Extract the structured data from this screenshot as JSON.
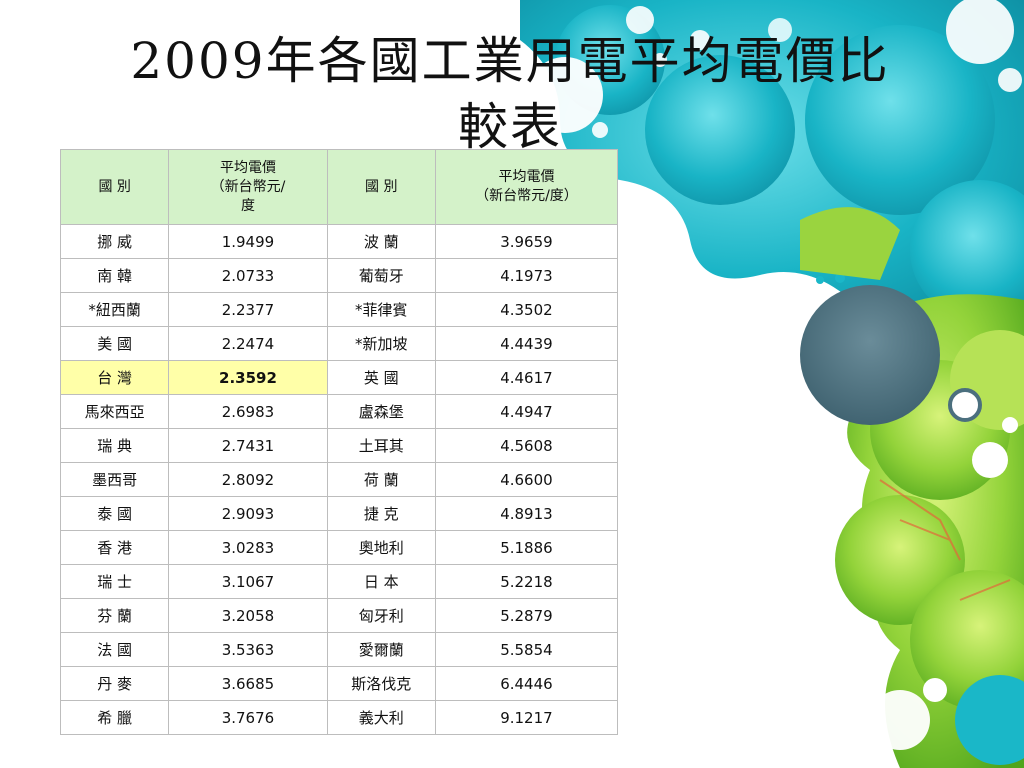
{
  "title": {
    "line1": "2009年各國工業用電平均電價比",
    "line2": "較表"
  },
  "table": {
    "headers": {
      "country": "國 別",
      "price_line1": "平均電價",
      "price_line2_left": "（新台幣元/",
      "price_line3_left": "度",
      "price_line2_right": "（新台幣元/度）"
    },
    "rows": [
      {
        "c1": "挪 威",
        "p1": "1.9499",
        "c2": "波 蘭",
        "p2": "3.9659"
      },
      {
        "c1": "南 韓",
        "p1": "2.0733",
        "c2": "葡萄牙",
        "p2": "4.1973"
      },
      {
        "c1": "*紐西蘭",
        "p1": "2.2377",
        "c2": "*菲律賓",
        "p2": "4.3502"
      },
      {
        "c1": "美 國",
        "p1": "2.2474",
        "c2": "*新加坡",
        "p2": "4.4439"
      },
      {
        "c1": "台 灣",
        "p1": "2.3592",
        "c2": "英 國",
        "p2": "4.4617",
        "highlight": true
      },
      {
        "c1": "馬來西亞",
        "p1": "2.6983",
        "c2": "盧森堡",
        "p2": "4.4947"
      },
      {
        "c1": "瑞 典",
        "p1": "2.7431",
        "c2": "土耳其",
        "p2": "4.5608"
      },
      {
        "c1": "墨西哥",
        "p1": "2.8092",
        "c2": "荷 蘭",
        "p2": "4.6600"
      },
      {
        "c1": "泰 國",
        "p1": "2.9093",
        "c2": "捷 克",
        "p2": "4.8913"
      },
      {
        "c1": "香 港",
        "p1": "3.0283",
        "c2": "奧地利",
        "p2": "5.1886"
      },
      {
        "c1": "瑞 士",
        "p1": "3.1067",
        "c2": "日 本",
        "p2": "5.2218"
      },
      {
        "c1": "芬 蘭",
        "p1": "3.2058",
        "c2": "匈牙利",
        "p2": "5.2879"
      },
      {
        "c1": "法 國",
        "p1": "3.5363",
        "c2": "愛爾蘭",
        "p2": "5.5854"
      },
      {
        "c1": "丹 麥",
        "p1": "3.6685",
        "c2": "斯洛伐克",
        "p2": "6.4446"
      },
      {
        "c1": "希 臘",
        "p1": "3.7676",
        "c2": "義大利",
        "p2": "9.1217"
      }
    ]
  },
  "colors": {
    "header_bg": "#d4f2c9",
    "highlight_bg": "#ffffa8",
    "teal": "#1ab7c8",
    "green": "#7ccc2a",
    "slate": "#4b6f7e"
  }
}
